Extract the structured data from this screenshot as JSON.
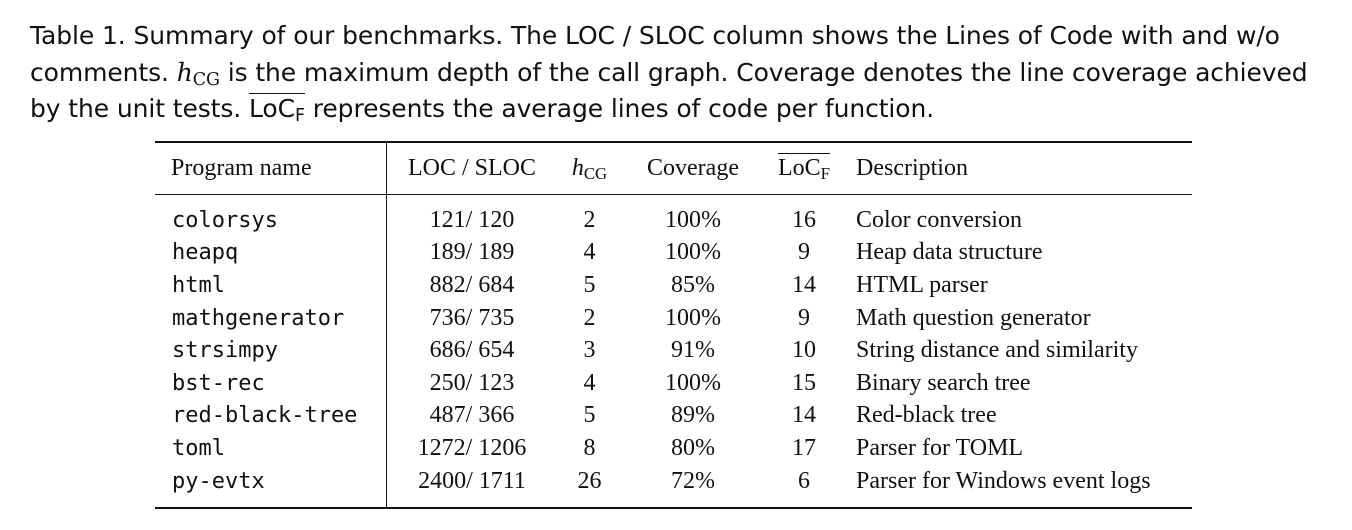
{
  "caption": {
    "part1": "Table 1.  Summary of our benchmarks. The LOC / SLOC column shows the Lines of Code with and w/o comments. ",
    "h_symbol": "h",
    "h_sub": "CG",
    "part2": " is the maximum depth of the call graph. Coverage denotes the line coverage achieved by the unit tests. ",
    "locf_main": "LoC",
    "locf_sub": "F",
    "part3": " represents the average lines of code per function."
  },
  "table": {
    "headers": {
      "program_name": "Program name",
      "loc_sloc": "LOC / SLOC",
      "h_main": "h",
      "h_sub": "CG",
      "coverage": "Coverage",
      "locf_main": "LoC",
      "locf_sub": "F",
      "description": "Description"
    },
    "rows": [
      {
        "name": "colorsys",
        "loc": "121/ 120",
        "h": "2",
        "coverage": "100%",
        "locf": "16",
        "description": "Color conversion"
      },
      {
        "name": "heapq",
        "loc": "189/ 189",
        "h": "4",
        "coverage": "100%",
        "locf": "9",
        "description": "Heap data structure"
      },
      {
        "name": "html",
        "loc": "882/ 684",
        "h": "5",
        "coverage": "85%",
        "locf": "14",
        "description": "HTML parser"
      },
      {
        "name": "mathgenerator",
        "loc": "736/ 735",
        "h": "2",
        "coverage": "100%",
        "locf": "9",
        "description": "Math question generator"
      },
      {
        "name": "strsimpy",
        "loc": "686/ 654",
        "h": "3",
        "coverage": "91%",
        "locf": "10",
        "description": "String distance and similarity"
      },
      {
        "name": "bst-rec",
        "loc": "250/ 123",
        "h": "4",
        "coverage": "100%",
        "locf": "15",
        "description": "Binary search tree"
      },
      {
        "name": "red-black-tree",
        "loc": "487/ 366",
        "h": "5",
        "coverage": "89%",
        "locf": "14",
        "description": "Red-black tree"
      },
      {
        "name": "toml",
        "loc": "1272/ 1206",
        "h": "8",
        "coverage": "80%",
        "locf": "17",
        "description": "Parser for TOML"
      },
      {
        "name": "py-evtx",
        "loc": "2400/ 1711",
        "h": "26",
        "coverage": "72%",
        "locf": "6",
        "description": "Parser for Windows event logs"
      }
    ]
  }
}
